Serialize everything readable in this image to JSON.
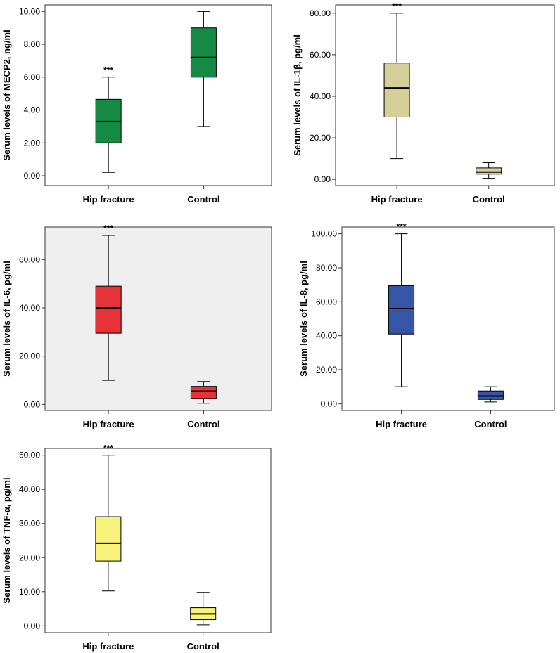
{
  "chart_data": [
    {
      "type": "box",
      "ylabel": "Serum levels of MECP2, ng/ml",
      "background": "#ffffff",
      "ylim": [
        -0.6,
        10.4
      ],
      "yticks": [
        0,
        2,
        4,
        6,
        8,
        10
      ],
      "ytick_labels": [
        "0.00",
        "2.00",
        "4.00",
        "6.00",
        "8.00",
        "10.00"
      ],
      "categories": [
        "Hip fracture",
        "Control"
      ],
      "boxes": [
        {
          "category": "Hip fracture",
          "min": 0.2,
          "q1": 2.0,
          "median": 3.3,
          "q3": 4.65,
          "max": 6.0,
          "color": "#148a45",
          "annotation": "***"
        },
        {
          "category": "Control",
          "min": 3.0,
          "q1": 6.0,
          "median": 7.2,
          "q3": 9.0,
          "max": 10.0,
          "color": "#148a45",
          "annotation": ""
        }
      ]
    },
    {
      "type": "box",
      "ylabel": "Serum levels of IL-1β, pg/ml",
      "background": "#ffffff",
      "ylim": [
        -3,
        84
      ],
      "yticks": [
        0,
        20,
        40,
        60,
        80
      ],
      "ytick_labels": [
        "0.00",
        "20.00",
        "40.00",
        "60.00",
        "80.00"
      ],
      "categories": [
        "Hip fracture",
        "Control"
      ],
      "boxes": [
        {
          "category": "Hip fracture",
          "min": 10.0,
          "q1": 30.0,
          "median": 44.0,
          "q3": 56.0,
          "max": 80.0,
          "color": "#d5d09a",
          "annotation": "***"
        },
        {
          "category": "Control",
          "min": 0.5,
          "q1": 2.5,
          "median": 3.5,
          "q3": 5.5,
          "max": 8.0,
          "color": "#d5d09a",
          "annotation": ""
        }
      ]
    },
    {
      "type": "box",
      "ylabel": "Serum levels of IL-6, pg/ml",
      "background": "#efefef",
      "ylim": [
        -2.5,
        73.5
      ],
      "yticks": [
        0,
        20,
        40,
        60
      ],
      "ytick_labels": [
        "0.00",
        "20.00",
        "40.00",
        "60.00"
      ],
      "categories": [
        "Hip fracture",
        "Control"
      ],
      "boxes": [
        {
          "category": "Hip fracture",
          "min": 10.0,
          "q1": 29.5,
          "median": 40.0,
          "q3": 49.0,
          "max": 70.0,
          "color": "#e8323a",
          "annotation": "***"
        },
        {
          "category": "Control",
          "min": 0.5,
          "q1": 2.5,
          "median": 5.5,
          "q3": 7.5,
          "max": 9.5,
          "color": "#e8323a",
          "annotation": ""
        }
      ]
    },
    {
      "type": "box",
      "ylabel": "Serum levels of IL-8, pg/ml",
      "background": "#ffffff",
      "ylim": [
        -4,
        104
      ],
      "yticks": [
        0,
        20,
        40,
        60,
        80,
        100
      ],
      "ytick_labels": [
        "0.00",
        "20.00",
        "40.00",
        "60.00",
        "80.00",
        "100.00"
      ],
      "categories": [
        "Hip fracture",
        "Control"
      ],
      "boxes": [
        {
          "category": "Hip fracture",
          "min": 10.0,
          "q1": 41.0,
          "median": 56.0,
          "q3": 69.5,
          "max": 100.0,
          "color": "#3555a5",
          "annotation": "***"
        },
        {
          "category": "Control",
          "min": 1.0,
          "q1": 2.5,
          "median": 4.5,
          "q3": 7.5,
          "max": 10.0,
          "color": "#3555a5",
          "annotation": ""
        }
      ]
    },
    {
      "type": "box",
      "ylabel": "Serum levels of TNF-α, pg/ml",
      "background": "#ffffff",
      "ylim": [
        -2,
        52
      ],
      "yticks": [
        0,
        10,
        20,
        30,
        40,
        50
      ],
      "ytick_labels": [
        "0.00",
        "10.00",
        "20.00",
        "30.00",
        "40.00",
        "50.00"
      ],
      "categories": [
        "Hip fracture",
        "Control"
      ],
      "boxes": [
        {
          "category": "Hip fracture",
          "min": 10.2,
          "q1": 19.0,
          "median": 24.2,
          "q3": 32.0,
          "max": 50.0,
          "color": "#f7f27a",
          "annotation": "***"
        },
        {
          "category": "Control",
          "min": 0.3,
          "q1": 1.8,
          "median": 3.5,
          "q3": 5.3,
          "max": 9.8,
          "color": "#f7f27a",
          "annotation": ""
        }
      ]
    }
  ]
}
